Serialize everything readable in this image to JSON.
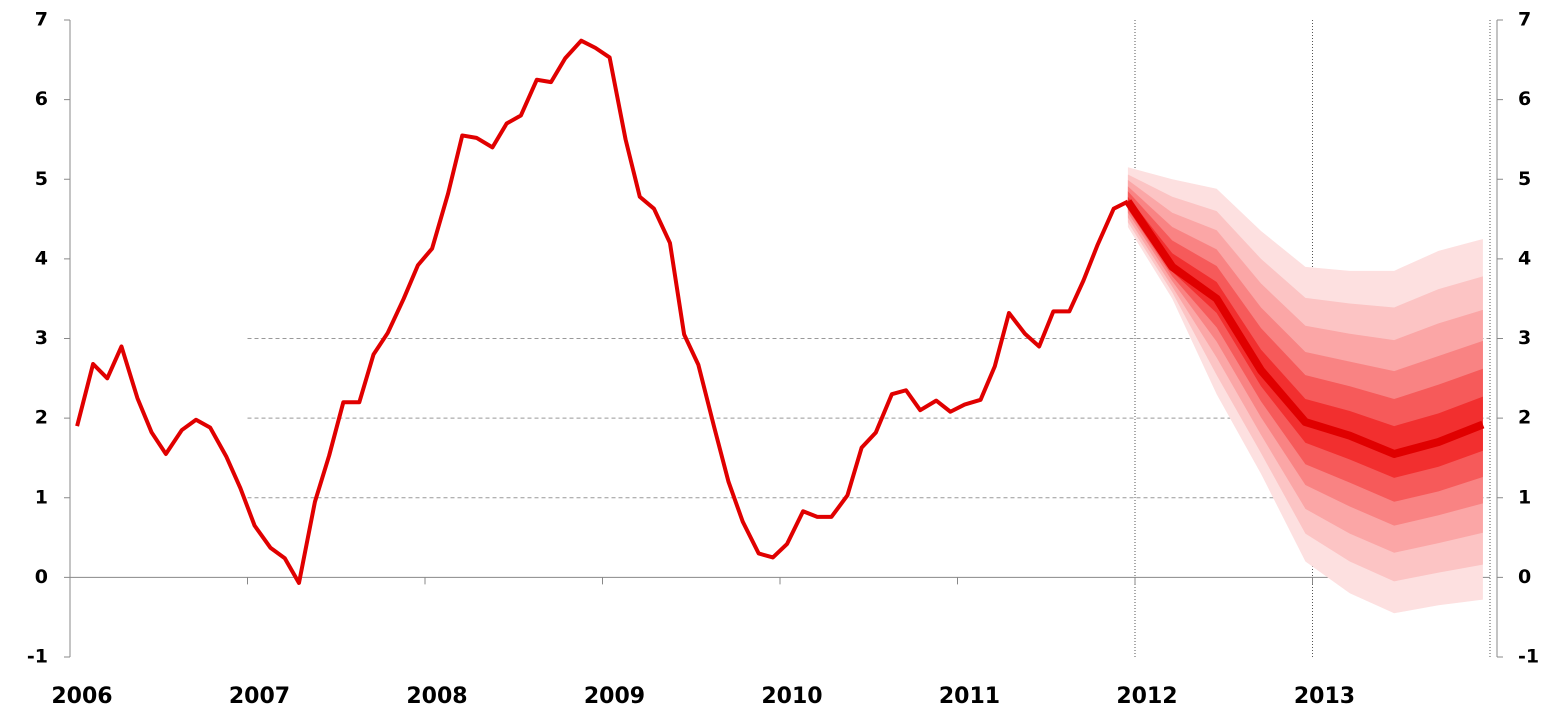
{
  "chart_data": {
    "type": "fan",
    "x": [
      2006.04,
      2006.13,
      2006.21,
      2006.29,
      2006.38,
      2006.46,
      2006.54,
      2006.63,
      2006.71,
      2006.79,
      2006.88,
      2006.96,
      2007.04,
      2007.13,
      2007.21,
      2007.29,
      2007.38,
      2007.46,
      2007.54,
      2007.63,
      2007.71,
      2007.79,
      2007.88,
      2007.96,
      2008.04,
      2008.13,
      2008.21,
      2008.29,
      2008.38,
      2008.46,
      2008.54,
      2008.63,
      2008.71,
      2008.79,
      2008.88,
      2008.96,
      2009.04,
      2009.13,
      2009.21,
      2009.29,
      2009.38,
      2009.46,
      2009.54,
      2009.63,
      2009.71,
      2009.79,
      2009.88,
      2009.96,
      2010.04,
      2010.13,
      2010.21,
      2010.29,
      2010.38,
      2010.46,
      2010.54,
      2010.63,
      2010.71,
      2010.79,
      2010.88,
      2010.96,
      2011.04,
      2011.13,
      2011.21,
      2011.29,
      2011.38,
      2011.46,
      2011.54,
      2011.63,
      2011.71,
      2011.79,
      2011.88,
      2011.96
    ],
    "series": [
      {
        "color": "#e00000",
        "values": [
          1.9,
          2.68,
          2.5,
          2.9,
          2.25,
          1.82,
          1.55,
          1.85,
          1.98,
          1.88,
          1.52,
          1.12,
          0.65,
          0.37,
          0.24,
          -0.07,
          0.95,
          1.53,
          2.2,
          2.2,
          2.8,
          3.07,
          3.5,
          3.92,
          4.13,
          4.82,
          5.55,
          5.52,
          5.4,
          5.7,
          5.8,
          6.25,
          6.22,
          6.52,
          6.74,
          6.65,
          6.53,
          5.5,
          4.78,
          4.63,
          4.2,
          3.05,
          2.67,
          1.88,
          1.2,
          0.7,
          0.3,
          0.25,
          0.42,
          0.83,
          0.76,
          0.76,
          1.03,
          1.63,
          1.82,
          2.3,
          2.35,
          2.1,
          2.22,
          2.08,
          2.17,
          2.23,
          2.65,
          3.32,
          3.06,
          2.9,
          3.34,
          3.34,
          3.73,
          4.18,
          4.63,
          4.72
        ]
      }
    ],
    "fan": {
      "x": [
        2011.96,
        2012.21,
        2012.46,
        2012.71,
        2012.96,
        2013.21,
        2013.46,
        2013.71,
        2013.96
      ],
      "central": [
        4.72,
        3.9,
        3.5,
        2.6,
        1.95,
        1.78,
        1.55,
        1.7,
        1.92
      ],
      "central_color": "#e00000",
      "bands": [
        {
          "color": "#fde0e0",
          "upper": [
            5.15,
            5.0,
            4.88,
            4.35,
            3.9,
            3.85,
            3.85,
            4.1,
            4.25
          ],
          "lower": [
            4.4,
            3.5,
            2.3,
            1.3,
            0.2,
            -0.2,
            -0.45,
            -0.35,
            -0.28
          ]
        },
        {
          "color": "#fcc4c4",
          "upper": [
            5.06,
            4.78,
            4.6,
            4.0,
            3.51,
            3.44,
            3.39,
            3.62,
            3.78
          ],
          "lower": [
            4.46,
            3.58,
            2.54,
            1.56,
            0.55,
            0.2,
            -0.05,
            0.06,
            0.16
          ]
        },
        {
          "color": "#fba6a6",
          "upper": [
            4.99,
            4.58,
            4.36,
            3.69,
            3.16,
            3.06,
            2.98,
            3.19,
            3.36
          ],
          "lower": [
            4.52,
            3.65,
            2.76,
            1.79,
            0.86,
            0.55,
            0.31,
            0.43,
            0.56
          ]
        },
        {
          "color": "#f98383",
          "upper": [
            4.91,
            4.4,
            4.12,
            3.39,
            2.83,
            2.71,
            2.59,
            2.78,
            2.97
          ],
          "lower": [
            4.58,
            3.72,
            2.96,
            2.01,
            1.16,
            0.89,
            0.65,
            0.78,
            0.93
          ]
        },
        {
          "color": "#f65a5a",
          "upper": [
            4.85,
            4.23,
            3.91,
            3.13,
            2.54,
            2.4,
            2.24,
            2.42,
            2.62
          ],
          "lower": [
            4.62,
            3.78,
            3.14,
            2.21,
            1.42,
            1.19,
            0.95,
            1.08,
            1.26
          ]
        },
        {
          "color": "#f22f2f",
          "upper": [
            4.78,
            4.07,
            3.71,
            2.86,
            2.24,
            2.09,
            1.9,
            2.06,
            2.27
          ],
          "lower": [
            4.67,
            3.84,
            3.32,
            2.4,
            1.69,
            1.48,
            1.25,
            1.39,
            1.59
          ]
        }
      ]
    },
    "xlim": [
      2006,
      2014
    ],
    "xticks": [
      2006,
      2007,
      2008,
      2009,
      2010,
      2011,
      2012,
      2013
    ],
    "ylim": [
      -1,
      7
    ],
    "yticks": [
      -1,
      0,
      1,
      2,
      3,
      4,
      5,
      6,
      7
    ],
    "gridlines": [
      1,
      2,
      3
    ]
  }
}
